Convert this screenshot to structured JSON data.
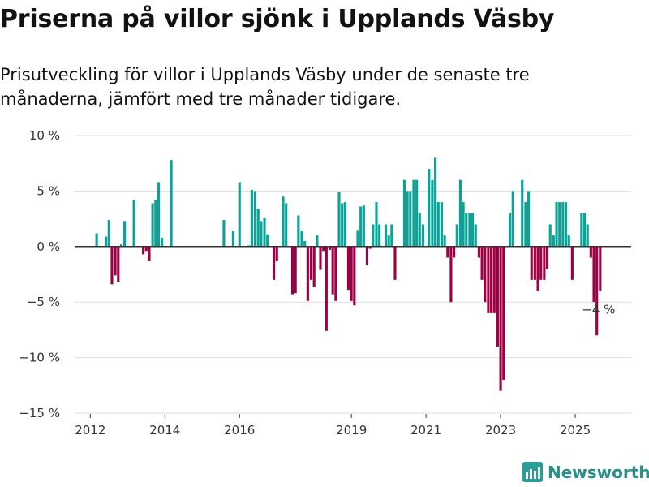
{
  "title": "Priserna på villor sjönk i Upplands Väsby",
  "subtitle": "Prisutveckling för villor i Upplands Väsby under de senaste tre månaderna, jämfört med tre månader tidigare.",
  "brand": {
    "name": "Newsworthy",
    "color": "#2a9d96"
  },
  "colors": {
    "positive": "#0aa398",
    "negative": "#9e0044",
    "grid": "#dddddd",
    "zero": "#333333"
  },
  "chart_data": {
    "type": "bar",
    "title": "Priserna på villor sjönk i Upplands Väsby",
    "xlabel": "",
    "ylabel": "",
    "ylim": [
      -15,
      10
    ],
    "y_ticks": [
      {
        "value": 10,
        "label": "10 %"
      },
      {
        "value": 5,
        "label": "5 %"
      },
      {
        "value": 0,
        "label": "0 %"
      },
      {
        "value": -5,
        "label": "−5 %"
      },
      {
        "value": -10,
        "label": "−10 %"
      },
      {
        "value": -15,
        "label": "−15 %"
      }
    ],
    "x_ticks": [
      {
        "value": 2012.0,
        "label": "2012"
      },
      {
        "value": 2014.0,
        "label": "2014"
      },
      {
        "value": 2016.0,
        "label": "2016"
      },
      {
        "value": 2019.0,
        "label": "2019"
      },
      {
        "value": 2021.0,
        "label": "2021"
      },
      {
        "value": 2023.0,
        "label": "2023"
      },
      {
        "value": 2025.0,
        "label": "2025"
      }
    ],
    "xlim": [
      2011.58,
      2026.5
    ],
    "series": [
      {
        "name": "Prisutveckling",
        "points": [
          {
            "x": 2012.17,
            "y": 1.2
          },
          {
            "x": 2012.42,
            "y": 0.9
          },
          {
            "x": 2012.5,
            "y": 2.4
          },
          {
            "x": 2012.58,
            "y": -3.4
          },
          {
            "x": 2012.67,
            "y": -2.6
          },
          {
            "x": 2012.75,
            "y": -3.2
          },
          {
            "x": 2012.83,
            "y": 0.2
          },
          {
            "x": 2012.92,
            "y": 2.3
          },
          {
            "x": 2013.17,
            "y": 4.2
          },
          {
            "x": 2013.42,
            "y": -0.7
          },
          {
            "x": 2013.5,
            "y": -0.4
          },
          {
            "x": 2013.58,
            "y": -1.3
          },
          {
            "x": 2013.67,
            "y": 3.9
          },
          {
            "x": 2013.75,
            "y": 4.2
          },
          {
            "x": 2013.83,
            "y": 5.8
          },
          {
            "x": 2013.92,
            "y": 0.8
          },
          {
            "x": 2014.17,
            "y": 7.8
          },
          {
            "x": 2015.58,
            "y": 2.4
          },
          {
            "x": 2015.83,
            "y": 1.4
          },
          {
            "x": 2016.0,
            "y": 5.8
          },
          {
            "x": 2016.25,
            "y": 0.1
          },
          {
            "x": 2016.33,
            "y": 5.1
          },
          {
            "x": 2016.42,
            "y": 5.0
          },
          {
            "x": 2016.5,
            "y": 3.4
          },
          {
            "x": 2016.58,
            "y": 2.3
          },
          {
            "x": 2016.67,
            "y": 2.6
          },
          {
            "x": 2016.75,
            "y": 1.1
          },
          {
            "x": 2016.92,
            "y": -3.0
          },
          {
            "x": 2017.0,
            "y": -1.3
          },
          {
            "x": 2017.17,
            "y": 4.5
          },
          {
            "x": 2017.25,
            "y": 3.9
          },
          {
            "x": 2017.42,
            "y": -4.3
          },
          {
            "x": 2017.5,
            "y": -4.2
          },
          {
            "x": 2017.58,
            "y": 2.8
          },
          {
            "x": 2017.67,
            "y": 1.4
          },
          {
            "x": 2017.75,
            "y": 0.5
          },
          {
            "x": 2017.83,
            "y": -4.9
          },
          {
            "x": 2017.92,
            "y": -3.0
          },
          {
            "x": 2018.0,
            "y": -3.6
          },
          {
            "x": 2018.08,
            "y": 1.0
          },
          {
            "x": 2018.17,
            "y": -2.1
          },
          {
            "x": 2018.25,
            "y": -0.4
          },
          {
            "x": 2018.33,
            "y": -7.6
          },
          {
            "x": 2018.42,
            "y": -0.3
          },
          {
            "x": 2018.5,
            "y": -4.3
          },
          {
            "x": 2018.58,
            "y": -4.9
          },
          {
            "x": 2018.67,
            "y": 4.9
          },
          {
            "x": 2018.75,
            "y": 3.9
          },
          {
            "x": 2018.83,
            "y": 4.0
          },
          {
            "x": 2018.92,
            "y": -3.9
          },
          {
            "x": 2019.0,
            "y": -4.9
          },
          {
            "x": 2019.08,
            "y": -5.3
          },
          {
            "x": 2019.17,
            "y": 1.5
          },
          {
            "x": 2019.25,
            "y": 3.6
          },
          {
            "x": 2019.33,
            "y": 3.7
          },
          {
            "x": 2019.42,
            "y": -1.7
          },
          {
            "x": 2019.5,
            "y": -0.2
          },
          {
            "x": 2019.58,
            "y": 2.0
          },
          {
            "x": 2019.67,
            "y": 4.0
          },
          {
            "x": 2019.75,
            "y": 2.0
          },
          {
            "x": 2019.92,
            "y": 2.0
          },
          {
            "x": 2020.0,
            "y": 1.0
          },
          {
            "x": 2020.08,
            "y": 2.0
          },
          {
            "x": 2020.17,
            "y": -3.0
          },
          {
            "x": 2020.42,
            "y": 6.0
          },
          {
            "x": 2020.5,
            "y": 5.0
          },
          {
            "x": 2020.58,
            "y": 5.0
          },
          {
            "x": 2020.67,
            "y": 6.0
          },
          {
            "x": 2020.75,
            "y": 6.0
          },
          {
            "x": 2020.83,
            "y": 3.0
          },
          {
            "x": 2020.92,
            "y": 2.0
          },
          {
            "x": 2021.08,
            "y": 7.0
          },
          {
            "x": 2021.17,
            "y": 6.0
          },
          {
            "x": 2021.25,
            "y": 8.0
          },
          {
            "x": 2021.33,
            "y": 4.0
          },
          {
            "x": 2021.42,
            "y": 4.0
          },
          {
            "x": 2021.5,
            "y": 1.0
          },
          {
            "x": 2021.58,
            "y": -1.0
          },
          {
            "x": 2021.67,
            "y": -5.0
          },
          {
            "x": 2021.75,
            "y": -1.0
          },
          {
            "x": 2021.83,
            "y": 2.0
          },
          {
            "x": 2021.92,
            "y": 6.0
          },
          {
            "x": 2022.0,
            "y": 4.0
          },
          {
            "x": 2022.08,
            "y": 3.0
          },
          {
            "x": 2022.17,
            "y": 3.0
          },
          {
            "x": 2022.25,
            "y": 3.0
          },
          {
            "x": 2022.33,
            "y": 2.0
          },
          {
            "x": 2022.42,
            "y": -1.0
          },
          {
            "x": 2022.5,
            "y": -3.0
          },
          {
            "x": 2022.58,
            "y": -5.0
          },
          {
            "x": 2022.67,
            "y": -6.0
          },
          {
            "x": 2022.75,
            "y": -6.0
          },
          {
            "x": 2022.83,
            "y": -6.0
          },
          {
            "x": 2022.92,
            "y": -9.0
          },
          {
            "x": 2023.0,
            "y": -13.0
          },
          {
            "x": 2023.08,
            "y": -12.0
          },
          {
            "x": 2023.25,
            "y": 3.0
          },
          {
            "x": 2023.33,
            "y": 5.0
          },
          {
            "x": 2023.58,
            "y": 6.0
          },
          {
            "x": 2023.67,
            "y": 4.0
          },
          {
            "x": 2023.75,
            "y": 5.0
          },
          {
            "x": 2023.83,
            "y": -3.0
          },
          {
            "x": 2023.92,
            "y": -3.0
          },
          {
            "x": 2024.0,
            "y": -4.0
          },
          {
            "x": 2024.08,
            "y": -3.0
          },
          {
            "x": 2024.17,
            "y": -3.0
          },
          {
            "x": 2024.25,
            "y": -2.0
          },
          {
            "x": 2024.33,
            "y": 2.0
          },
          {
            "x": 2024.42,
            "y": 1.0
          },
          {
            "x": 2024.5,
            "y": 4.0
          },
          {
            "x": 2024.58,
            "y": 4.0
          },
          {
            "x": 2024.67,
            "y": 4.0
          },
          {
            "x": 2024.75,
            "y": 4.0
          },
          {
            "x": 2024.83,
            "y": 1.0
          },
          {
            "x": 2024.92,
            "y": -3.0
          },
          {
            "x": 2025.17,
            "y": 3.0
          },
          {
            "x": 2025.25,
            "y": 3.0
          },
          {
            "x": 2025.33,
            "y": 2.0
          },
          {
            "x": 2025.42,
            "y": -1.0
          },
          {
            "x": 2025.5,
            "y": -5.0
          },
          {
            "x": 2025.58,
            "y": -8.0
          },
          {
            "x": 2025.67,
            "y": -4.0
          }
        ]
      }
    ],
    "annotations": [
      {
        "x": 2025.67,
        "y": -4.0,
        "text": "−4 %"
      }
    ]
  }
}
